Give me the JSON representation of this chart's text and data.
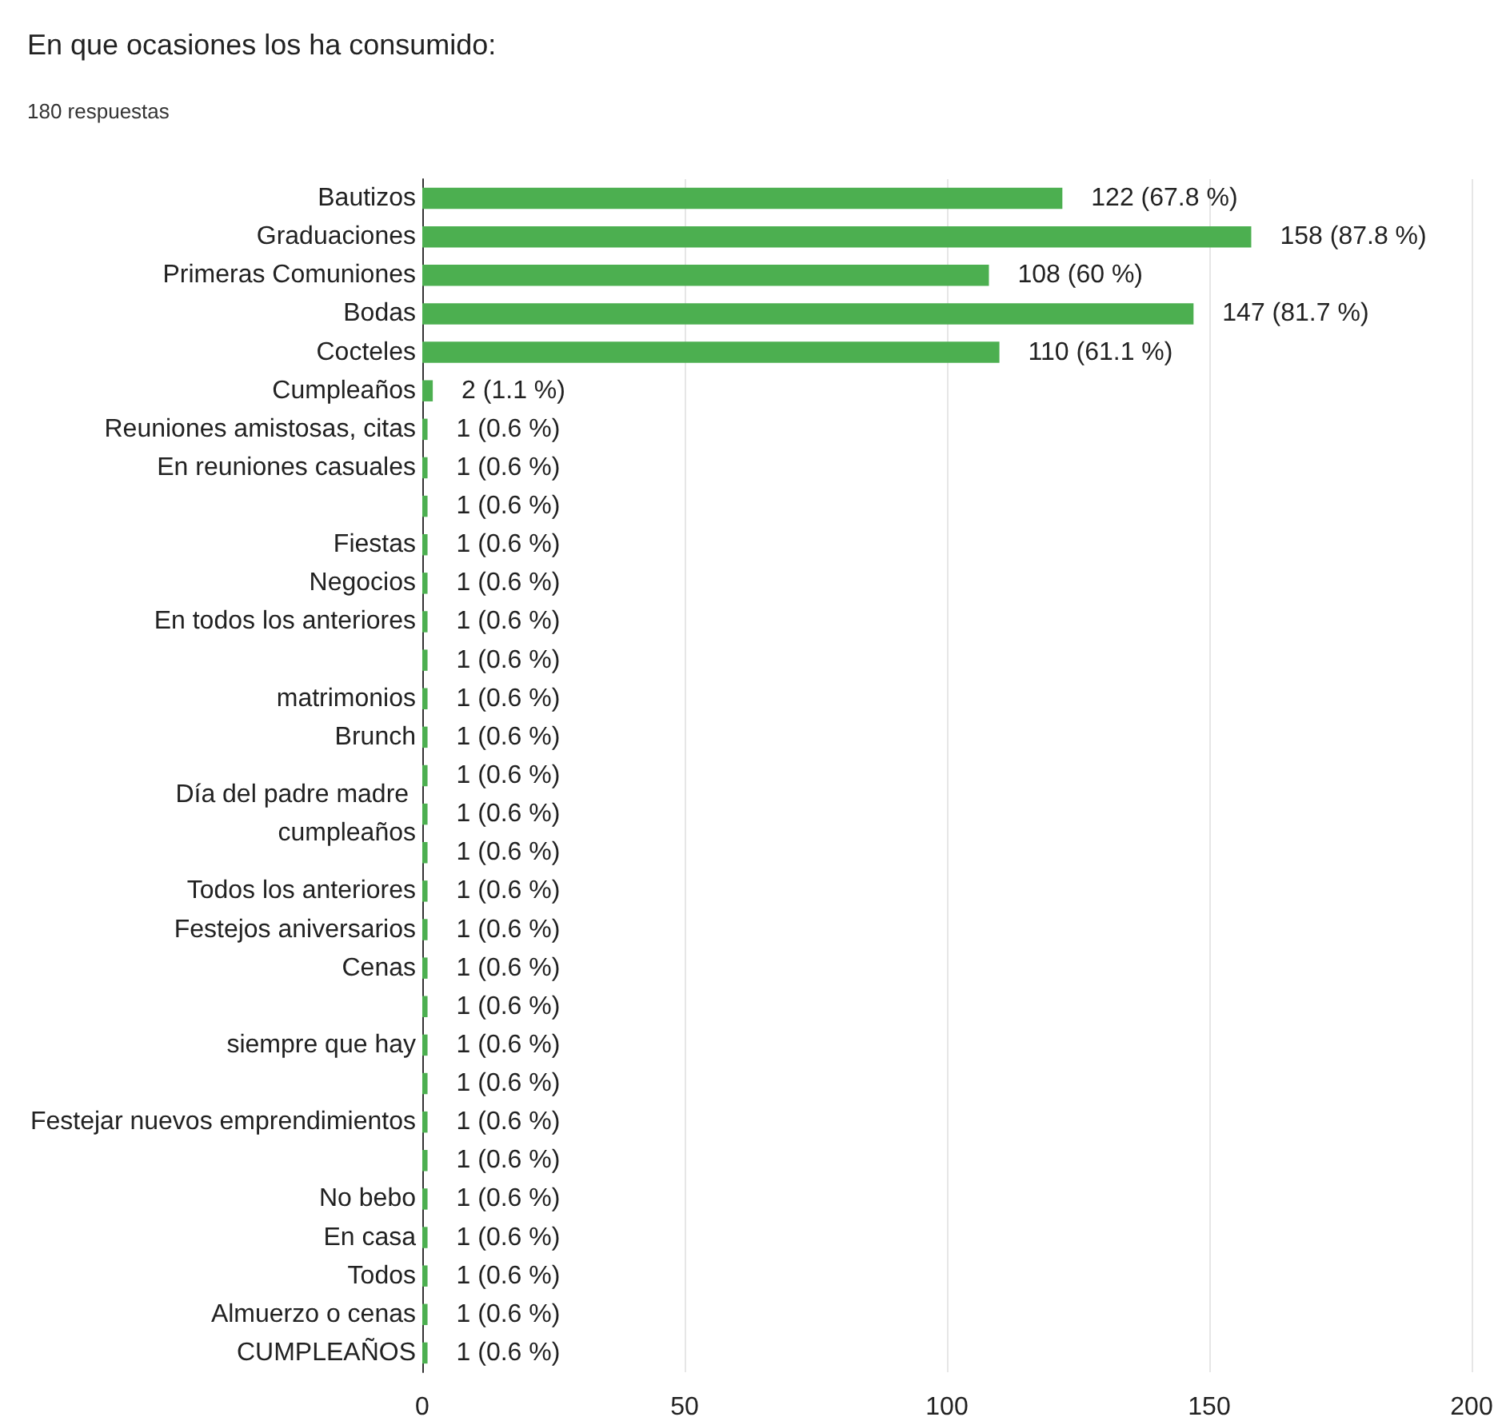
{
  "chart_data": {
    "type": "bar",
    "orientation": "horizontal",
    "title": "En que ocasiones los ha consumido:",
    "subtitle": "180 respuestas",
    "categories": [
      "Bautizos",
      "Graduaciones",
      "Primeras Comuniones",
      "Bodas",
      "Cocteles",
      "Cumpleaños",
      "Reuniones amistosas, citas",
      "En reuniones casuales",
      null,
      "Fiestas",
      "Negocios",
      "En todos los anteriores",
      null,
      "matrimonios",
      "Brunch",
      null,
      "Día del padre madre cumpleaños",
      null,
      "Todos los anteriores",
      "Festejos aniversarios",
      "Cenas",
      null,
      "siempre que hay",
      null,
      "Festejar nuevos emprendimientos",
      null,
      "No bebo",
      "En casa",
      "Todos",
      "Almuerzo o cenas",
      "CUMPLEAÑOS"
    ],
    "values": [
      122,
      158,
      108,
      147,
      110,
      2,
      1,
      1,
      1,
      1,
      1,
      1,
      1,
      1,
      1,
      1,
      1,
      1,
      1,
      1,
      1,
      1,
      1,
      1,
      1,
      1,
      1,
      1,
      1,
      1,
      1
    ],
    "value_labels": [
      "122 (67.8 %)",
      "158 (87.8 %)",
      "108 (60 %)",
      "147 (81.7 %)",
      "110 (61.1 %)",
      "2 (1.1 %)",
      "1 (0.6 %)",
      "1 (0.6 %)",
      "1 (0.6 %)",
      "1 (0.6 %)",
      "1 (0.6 %)",
      "1 (0.6 %)",
      "1 (0.6 %)",
      "1 (0.6 %)",
      "1 (0.6 %)",
      "1 (0.6 %)",
      "1 (0.6 %)",
      "1 (0.6 %)",
      "1 (0.6 %)",
      "1 (0.6 %)",
      "1 (0.6 %)",
      "1 (0.6 %)",
      "1 (0.6 %)",
      "1 (0.6 %)",
      "1 (0.6 %)",
      "1 (0.6 %)",
      "1 (0.6 %)",
      "1 (0.6 %)",
      "1 (0.6 %)",
      "1 (0.6 %)",
      "1 (0.6 %)"
    ],
    "color": "#4caf50",
    "xlim": [
      0,
      200
    ],
    "xticks": [
      0,
      50,
      100,
      150,
      200
    ],
    "grid": "x"
  }
}
